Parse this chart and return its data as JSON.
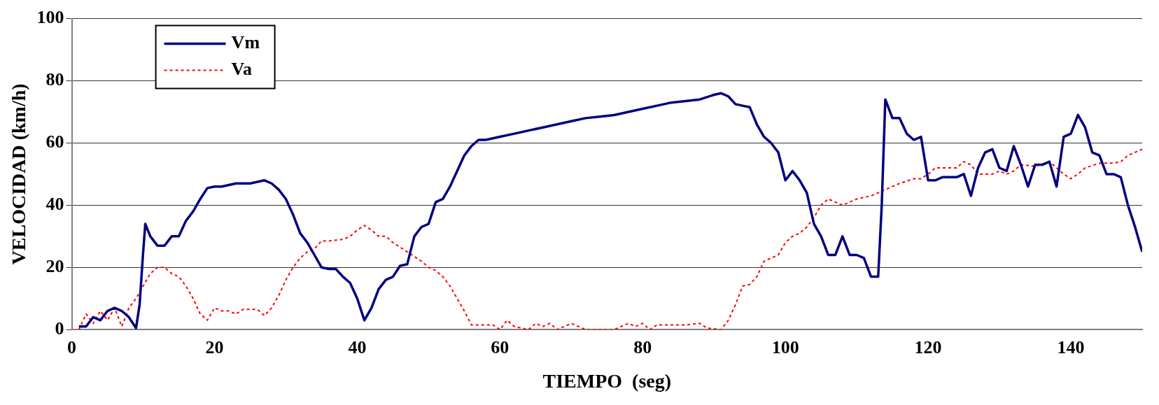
{
  "chart_data": {
    "type": "line",
    "xlabel": "TIEMPO  (seg)",
    "ylabel": "VELOCIDAD (km/h)",
    "xlim": [
      0,
      150
    ],
    "xticks": [
      0,
      20,
      40,
      60,
      80,
      100,
      120,
      140
    ],
    "ylim": [
      0,
      100
    ],
    "yticks": [
      0,
      20,
      40,
      60,
      80,
      100
    ],
    "grid": "y",
    "legend": "top left",
    "marker": "none",
    "series": [
      {
        "name": "Vm",
        "color": "#000080",
        "line_style": "solid",
        "x": [
          1,
          2,
          3,
          4,
          5,
          6,
          7,
          8,
          9,
          9.5,
          10,
          10.3,
          11,
          12,
          13,
          14,
          15,
          16,
          17,
          18,
          19,
          20,
          21,
          22,
          23,
          24,
          25,
          26,
          27,
          28,
          29,
          30,
          31,
          32,
          33,
          34,
          35,
          36,
          37,
          38,
          39,
          40,
          41,
          42,
          43,
          44,
          45,
          46,
          47,
          48,
          49,
          50,
          51,
          52,
          53,
          54,
          55,
          56,
          57,
          58,
          60,
          62,
          64,
          66,
          68,
          70,
          72,
          74,
          76,
          78,
          80,
          82,
          84,
          86,
          88,
          90,
          91,
          92,
          93,
          94,
          95,
          96,
          97,
          98,
          99,
          100,
          101,
          102,
          103,
          104,
          105,
          106,
          107,
          108,
          109,
          110,
          111,
          112,
          113,
          113.5,
          114,
          115,
          116,
          117,
          118,
          119,
          120,
          121,
          122,
          124,
          125,
          126,
          127,
          128,
          129,
          130,
          131,
          132,
          133,
          134,
          135,
          136,
          137,
          138,
          139,
          140,
          141,
          142,
          143,
          144,
          145,
          146,
          147,
          148,
          149,
          150
        ],
        "values": [
          1,
          1,
          4,
          3,
          6,
          7,
          6,
          4,
          0.5,
          8,
          25,
          34,
          30,
          27,
          27,
          30,
          30,
          35,
          38,
          42,
          45.5,
          46,
          46,
          46.5,
          47,
          47,
          47,
          47.5,
          48,
          47,
          45,
          42,
          37,
          31,
          28,
          24,
          20,
          19.5,
          19.5,
          17,
          15,
          10,
          3,
          7,
          13,
          16,
          17,
          20.5,
          21,
          30,
          33,
          34,
          41,
          42,
          46,
          51,
          56,
          59,
          61,
          61,
          62,
          63,
          64,
          65,
          66,
          67,
          68,
          68.5,
          69,
          70,
          71,
          72,
          73,
          73.5,
          74,
          75.5,
          76,
          75,
          72.5,
          72,
          71.5,
          66,
          62,
          60,
          57,
          48,
          51,
          48,
          44,
          34,
          30,
          24,
          24,
          30,
          24,
          24,
          23,
          17,
          17,
          40,
          74,
          68,
          68,
          63,
          61,
          62,
          48,
          48,
          49,
          49,
          50,
          43,
          52,
          57,
          58,
          52,
          51,
          59,
          53,
          46,
          53,
          53,
          54,
          46,
          62,
          63,
          69,
          65,
          57,
          56,
          50,
          50,
          49,
          40,
          33,
          25
        ]
      },
      {
        "name": "Va",
        "color": "#ff0000",
        "line_style": "dotted",
        "x": [
          1,
          2,
          3,
          4,
          5,
          6,
          7,
          8,
          9,
          10,
          11,
          12,
          13,
          14,
          15,
          16,
          17,
          18,
          19,
          20,
          21,
          22,
          23,
          24,
          25,
          26,
          27,
          28,
          29,
          30,
          31,
          32,
          33,
          34,
          35,
          36,
          38,
          39,
          40,
          41,
          42,
          43,
          44,
          45,
          47,
          48,
          49,
          50,
          51,
          52,
          53,
          54,
          55,
          56,
          59,
          60,
          61,
          62,
          64,
          65,
          66,
          67,
          68,
          70,
          72,
          76,
          78,
          79,
          80,
          81,
          82,
          86,
          88,
          89,
          91,
          92,
          93,
          94,
          95,
          96,
          97,
          98,
          99,
          100,
          101,
          102,
          103,
          104,
          105,
          106,
          107,
          108,
          109,
          110,
          112,
          113,
          115,
          116,
          118,
          119,
          120,
          121,
          124,
          125,
          126,
          127,
          129,
          130,
          131,
          132,
          133,
          135,
          137,
          138,
          139,
          140,
          141,
          142,
          144,
          146,
          147,
          148,
          150
        ],
        "values": [
          0,
          5,
          2,
          6,
          3,
          7,
          1,
          7,
          10,
          14,
          18,
          20,
          20,
          18,
          17,
          14,
          10,
          5,
          3,
          7,
          6,
          6,
          5,
          6.5,
          6.5,
          6.5,
          4.5,
          7,
          11,
          16,
          20,
          23,
          25,
          26,
          28.5,
          28.5,
          29,
          30,
          32,
          33.5,
          32,
          30,
          30,
          28,
          25,
          23.5,
          22,
          20,
          19,
          17,
          14,
          10,
          6,
          1.5,
          1.5,
          0,
          3,
          1,
          0,
          2,
          1,
          2,
          0,
          2,
          0,
          0,
          2,
          1,
          2,
          0,
          1.5,
          1.5,
          2,
          0.5,
          0,
          3,
          8,
          14,
          14.5,
          17,
          22,
          23,
          24,
          28,
          30,
          31,
          33,
          36,
          40,
          42,
          41,
          40,
          41,
          42,
          43,
          44,
          46,
          47,
          48.5,
          48.5,
          50,
          52,
          52,
          54,
          53,
          50,
          50,
          51,
          50,
          51,
          53,
          52.5,
          54,
          52,
          50,
          48.5,
          50,
          52,
          53.5,
          53.5,
          54,
          56,
          58
        ]
      }
    ]
  }
}
